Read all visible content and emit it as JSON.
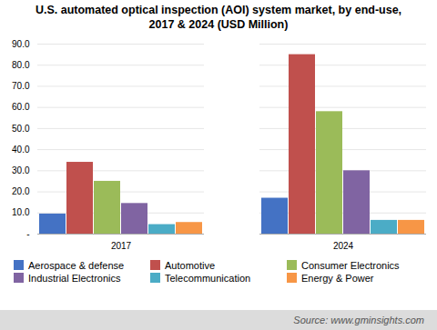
{
  "chart_data": {
    "type": "bar",
    "title": "U.S. automated optical inspection (AOI) system market, by end-use,\n2017 & 2024 (USD Million)",
    "caption": "Source: www.gminsights.com",
    "categories": [
      "2017",
      "2024"
    ],
    "series": [
      {
        "name": "Aerospace & defense",
        "color": "#4472c4",
        "values": [
          9.5,
          17.0
        ]
      },
      {
        "name": "Automotive",
        "color": "#c0504d",
        "values": [
          34.0,
          85.0
        ]
      },
      {
        "name": "Consumer Electronics",
        "color": "#9bbb59",
        "values": [
          25.0,
          58.0
        ]
      },
      {
        "name": "Industrial Electronics",
        "color": "#8064a2",
        "values": [
          14.5,
          30.0
        ]
      },
      {
        "name": "Telecommunication",
        "color": "#4bacc6",
        "values": [
          4.5,
          6.5
        ]
      },
      {
        "name": "Energy & Power",
        "color": "#f79646",
        "values": [
          5.5,
          6.5
        ]
      }
    ],
    "ylim": [
      0,
      90
    ],
    "yticks": [
      {
        "value": 0,
        "label": "-"
      },
      {
        "value": 10,
        "label": "10.0"
      },
      {
        "value": 20,
        "label": "20.0"
      },
      {
        "value": 30,
        "label": "30.0"
      },
      {
        "value": 40,
        "label": "40.0"
      },
      {
        "value": 50,
        "label": "50.0"
      },
      {
        "value": 60,
        "label": "60.0"
      },
      {
        "value": 70,
        "label": "70.0"
      },
      {
        "value": 80,
        "label": "80.0"
      },
      {
        "value": 90,
        "label": "90.0"
      }
    ],
    "grid": true,
    "legend": "bottom"
  }
}
